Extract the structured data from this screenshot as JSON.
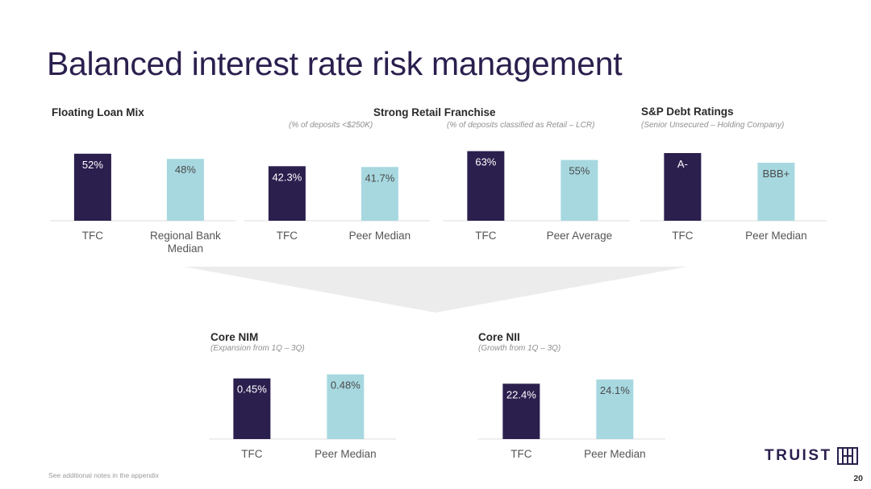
{
  "title": "Balanced interest rate risk management",
  "footer_note": "See additional notes in the appendix",
  "page_number": "20",
  "logo": {
    "text": "TRUIST",
    "mark": "truist-hh-mark"
  },
  "colors": {
    "primary": "#2b1f4e",
    "secondary": "#a7d8e0",
    "axis": "#e4e4e4"
  },
  "sections": {
    "floating": {
      "title": "Floating Loan Mix",
      "subtitle": ""
    },
    "retail": {
      "title": "Strong Retail Franchise",
      "subtitle_left": "(% of deposits <$250K)",
      "subtitle_right": "(% of deposits classified as Retail – LCR)"
    },
    "sp": {
      "title": "S&P Debt Ratings",
      "subtitle": "(Senior Unsecured – Holding Company)"
    },
    "nim": {
      "title": "Core NIM",
      "subtitle": "(Expansion from 1Q – 3Q)"
    },
    "nii": {
      "title": "Core NII",
      "subtitle": "(Growth from 1Q – 3Q)"
    }
  },
  "chart_data": [
    {
      "type": "bar",
      "id": "floating",
      "categories": [
        "TFC",
        "Regional Bank Median"
      ],
      "values": [
        52,
        48
      ],
      "labels": [
        "52%",
        "48%"
      ],
      "ylim": [
        0,
        60
      ]
    },
    {
      "type": "bar",
      "id": "deposits_250k",
      "categories": [
        "TFC",
        "Peer Median"
      ],
      "values": [
        42.3,
        41.7
      ],
      "labels": [
        "42.3%",
        "41.7%"
      ],
      "ylim": [
        0,
        60
      ]
    },
    {
      "type": "bar",
      "id": "retail_lcr",
      "categories": [
        "TFC",
        "Peer Average"
      ],
      "values": [
        63,
        55
      ],
      "labels": [
        "63%",
        "55%"
      ],
      "ylim": [
        0,
        70
      ]
    },
    {
      "type": "bar",
      "id": "sp_ratings",
      "categories": [
        "TFC",
        "Peer Median"
      ],
      "values": [
        7,
        6
      ],
      "labels": [
        "A-",
        "BBB+"
      ],
      "ylim": [
        0,
        8
      ]
    },
    {
      "type": "bar",
      "id": "core_nim",
      "categories": [
        "TFC",
        "Peer Median"
      ],
      "values": [
        0.45,
        0.48
      ],
      "labels": [
        "0.45%",
        "0.48%"
      ],
      "ylim": [
        0,
        0.55
      ]
    },
    {
      "type": "bar",
      "id": "core_nii",
      "categories": [
        "TFC",
        "Peer Median"
      ],
      "values": [
        22.4,
        24.1
      ],
      "labels": [
        "22.4%",
        "24.1%"
      ],
      "ylim": [
        0,
        30
      ]
    }
  ]
}
